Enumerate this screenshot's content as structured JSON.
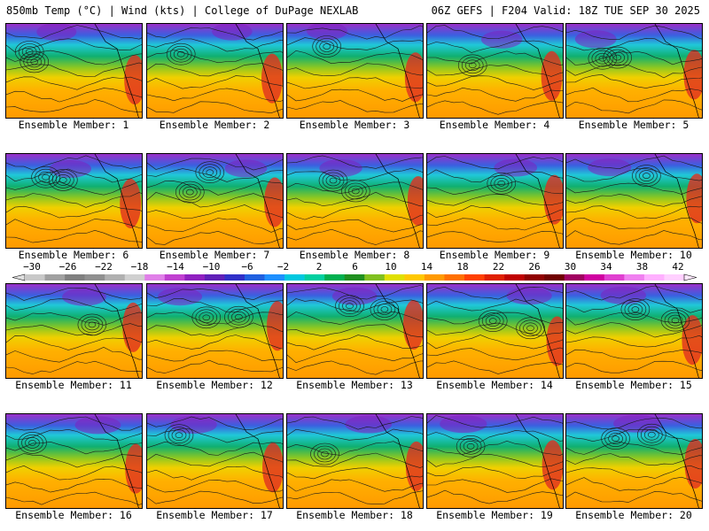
{
  "header": {
    "left": "850mb Temp (°C) | Wind (kts) | College of DuPage NEXLAB",
    "right": "06Z GEFS | F204 Valid: 18Z TUE SEP 30 2025"
  },
  "caption_prefix": "Ensemble Member: ",
  "members": [
    "1",
    "2",
    "3",
    "4",
    "5",
    "6",
    "7",
    "8",
    "9",
    "10",
    "11",
    "12",
    "13",
    "14",
    "15",
    "16",
    "17",
    "18",
    "19",
    "20"
  ],
  "colorbar": {
    "labels": [
      "−30",
      "−26",
      "−22",
      "−18",
      "−14",
      "−10",
      "−6",
      "−2",
      "2",
      "6",
      "10",
      "14",
      "18",
      "22",
      "26",
      "30",
      "34",
      "38",
      "42"
    ],
    "colors": [
      "#c8c8c8",
      "#a0a0a0",
      "#808080",
      "#909090",
      "#b0b0b0",
      "#d0d0d0",
      "#e080e8",
      "#c040d0",
      "#9020c0",
      "#6020b8",
      "#3030c8",
      "#2060e0",
      "#1e90ff",
      "#00c8e0",
      "#00d0a0",
      "#00b050",
      "#209020",
      "#80c020",
      "#e0e000",
      "#ffc800",
      "#ff9a00",
      "#ff7000",
      "#ff4000",
      "#e02000",
      "#c00000",
      "#900000",
      "#700000",
      "#a00060",
      "#d000a0",
      "#e040d0",
      "#f080f0",
      "#ffb0ff",
      "#ffd0ff"
    ]
  }
}
